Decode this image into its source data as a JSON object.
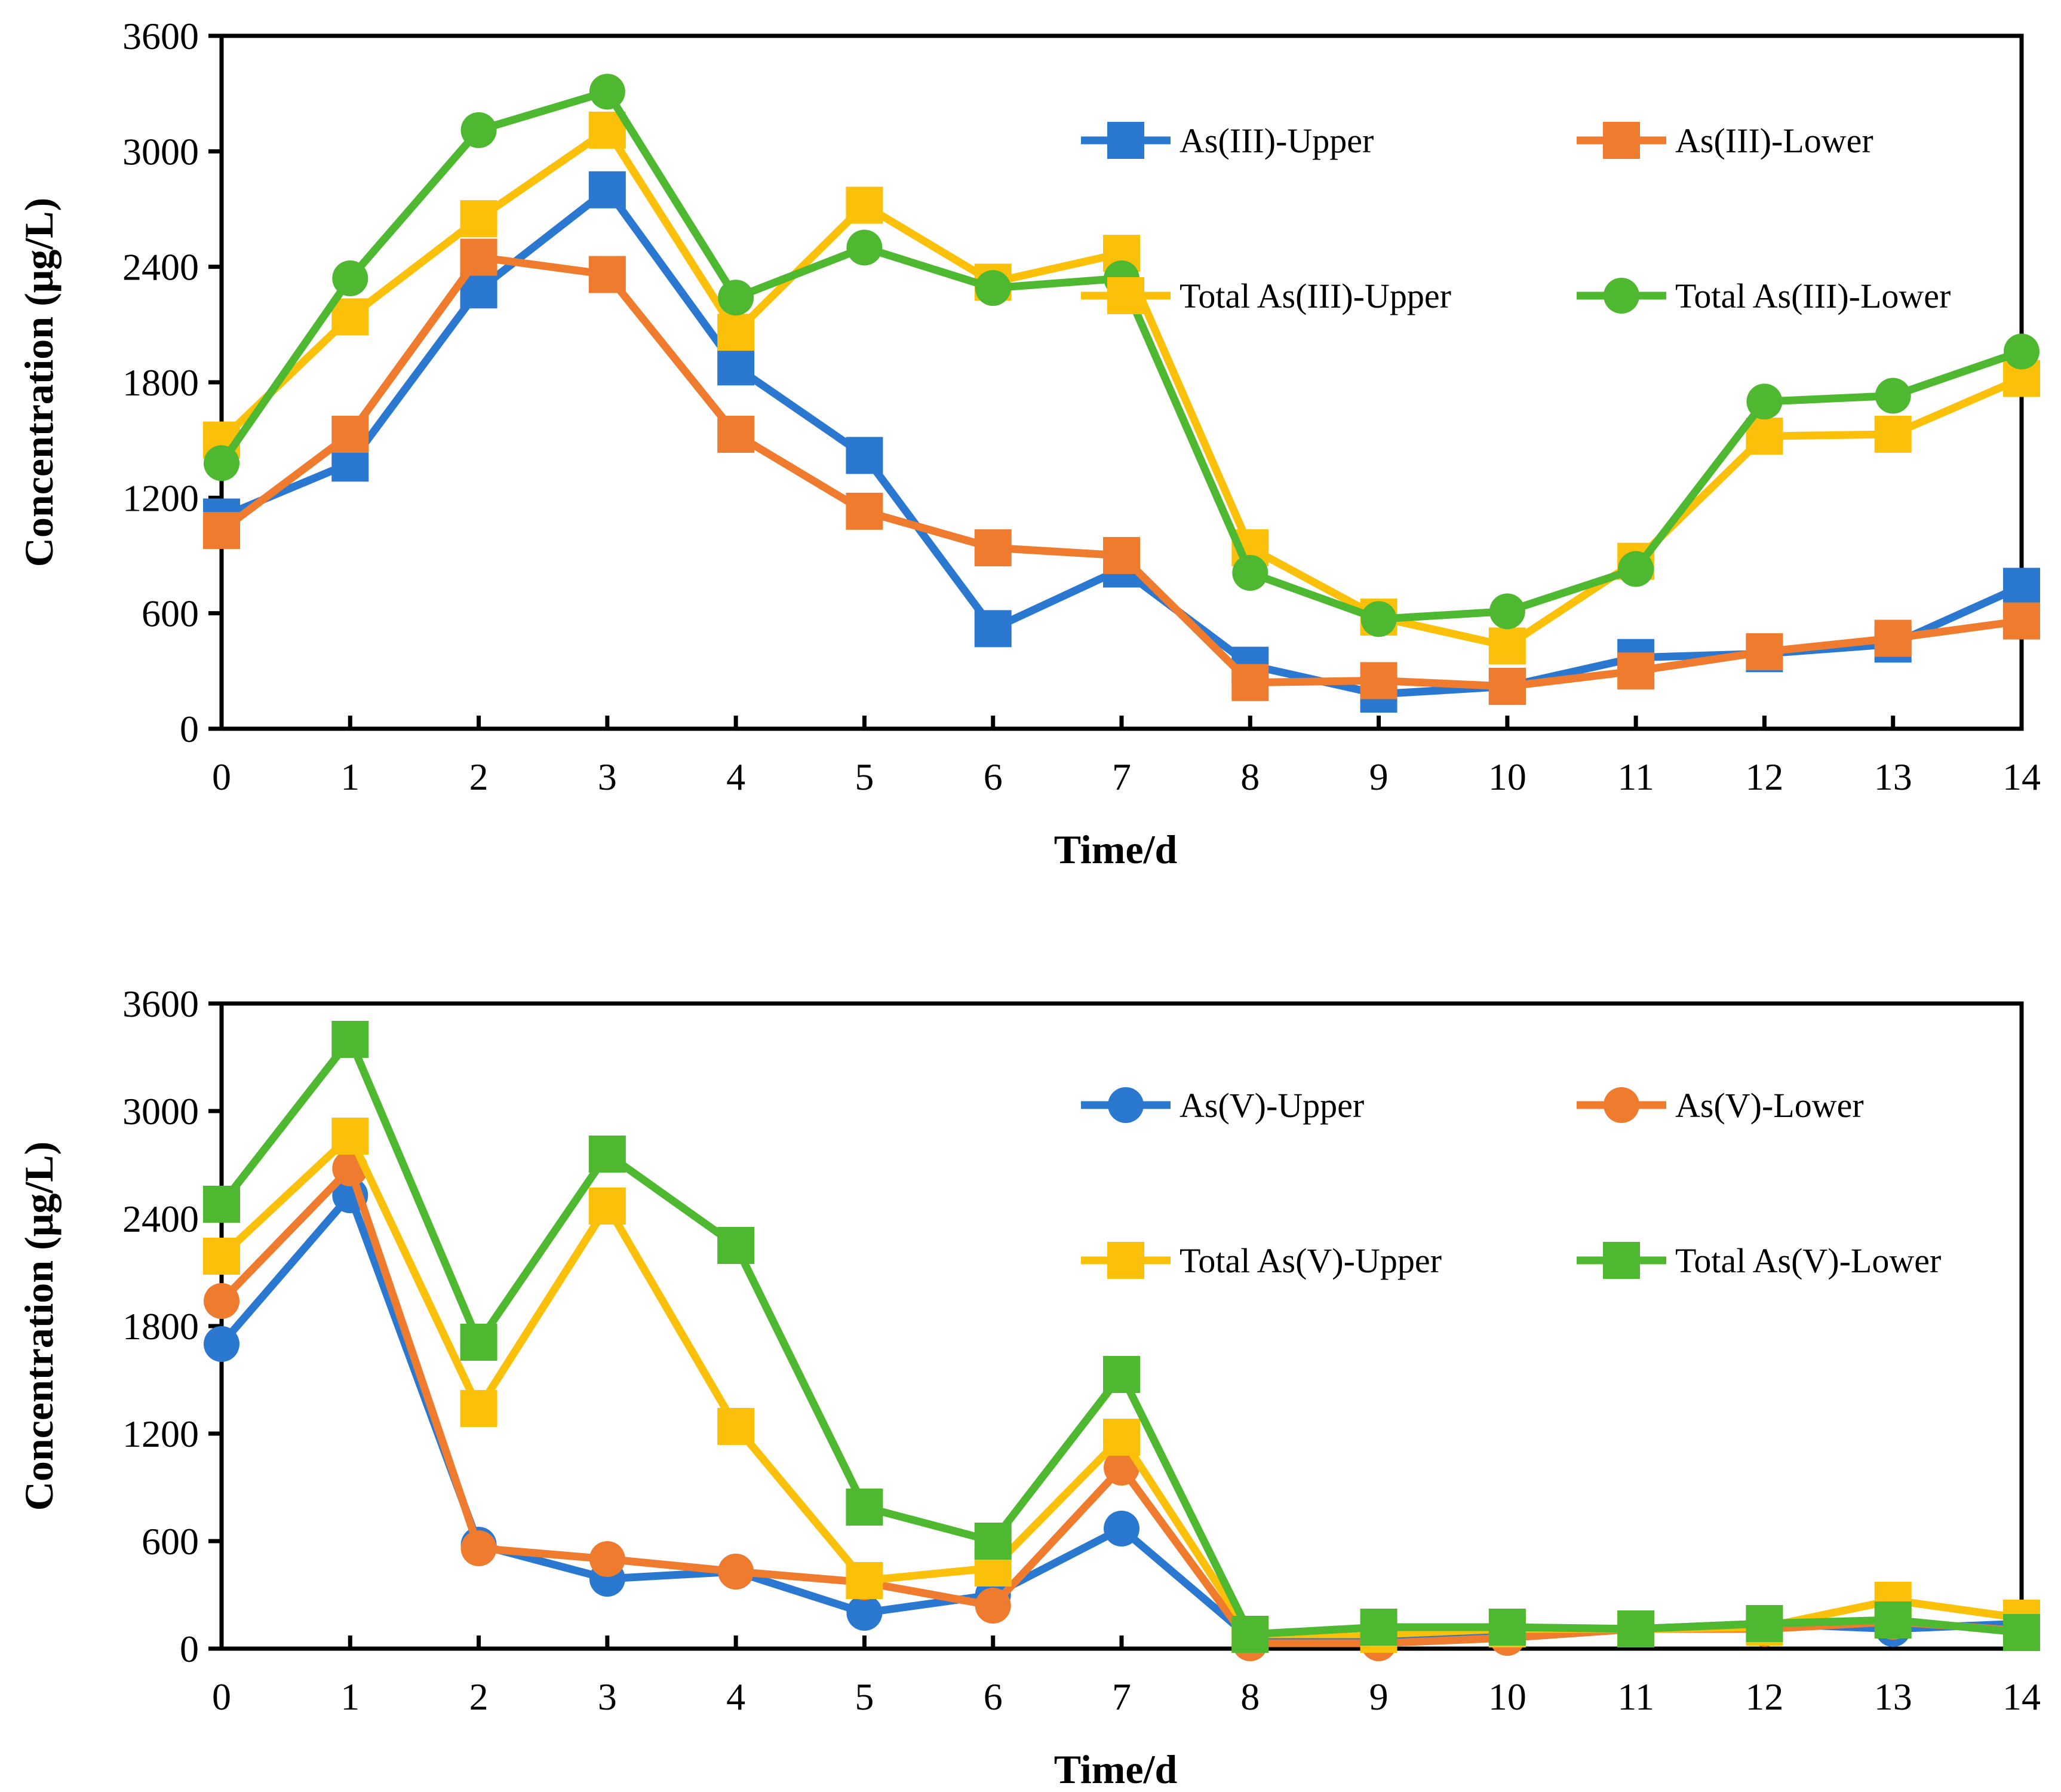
{
  "chart_data": [
    {
      "type": "line",
      "title": "",
      "xlabel": "Time/d",
      "ylabel": "Concentration (μg/L)",
      "x": [
        0,
        1,
        2,
        3,
        4,
        5,
        6,
        7,
        8,
        9,
        10,
        11,
        12,
        13,
        14
      ],
      "x_tick_labels": [
        "0",
        "1",
        "2",
        "3",
        "4",
        "5",
        "6",
        "7",
        "8",
        "9",
        "10",
        "11",
        "12",
        "13",
        "14"
      ],
      "xlim": [
        0,
        14
      ],
      "ylim": [
        0,
        3600
      ],
      "y_ticks": [
        0,
        600,
        1200,
        1800,
        2400,
        3000,
        3600
      ],
      "y_tick_labels": [
        "0",
        "600",
        "1200",
        "1800",
        "2400",
        "3000",
        "3600"
      ],
      "grid": false,
      "legend_position": "top-right",
      "series": [
        {
          "name": "As(III)-Upper",
          "color": "#2a78cf",
          "marker": "square",
          "values": [
            1100,
            1380,
            2280,
            2800,
            1880,
            1420,
            520,
            830,
            330,
            180,
            220,
            370,
            390,
            440,
            740
          ]
        },
        {
          "name": "As(III)-Lower",
          "color": "#ef7b2e",
          "marker": "square",
          "values": [
            1030,
            1530,
            2450,
            2360,
            1530,
            1130,
            940,
            900,
            240,
            250,
            220,
            300,
            400,
            470,
            560
          ]
        },
        {
          "name": "Total As(III)-Upper",
          "color": "#fbc00a",
          "marker": "square",
          "values": [
            1500,
            2140,
            2650,
            3110,
            2060,
            2720,
            2320,
            2470,
            940,
            580,
            430,
            870,
            1520,
            1530,
            1820
          ]
        },
        {
          "name": "Total As(III)-Lower",
          "color": "#4eb830",
          "marker": "circle",
          "values": [
            1380,
            2340,
            3110,
            3310,
            2240,
            2500,
            2290,
            2340,
            810,
            570,
            610,
            830,
            1700,
            1730,
            1960
          ]
        }
      ]
    },
    {
      "type": "line",
      "title": "",
      "xlabel": "Time/d",
      "ylabel": "Concentration (μg/L)",
      "x": [
        0,
        1,
        2,
        3,
        4,
        5,
        6,
        7,
        8,
        9,
        10,
        11,
        12,
        13,
        14
      ],
      "x_tick_labels": [
        "0",
        "1",
        "2",
        "3",
        "4",
        "5",
        "6",
        "7",
        "8",
        "9",
        "10",
        "11",
        "12",
        "13",
        "14"
      ],
      "xlim": [
        0,
        14
      ],
      "ylim": [
        0,
        3600
      ],
      "y_ticks": [
        0,
        600,
        1200,
        1800,
        2400,
        3000,
        3600
      ],
      "y_tick_labels": [
        "0",
        "600",
        "1200",
        "1800",
        "2400",
        "3000",
        "3600"
      ],
      "grid": false,
      "legend_position": "top-right",
      "series": [
        {
          "name": "As(V)-Upper",
          "color": "#2a78cf",
          "marker": "circle",
          "values": [
            1700,
            2530,
            580,
            390,
            430,
            200,
            300,
            670,
            60,
            50,
            80,
            110,
            140,
            110,
            140
          ]
        },
        {
          "name": "As(V)-Lower",
          "color": "#ef7b2e",
          "marker": "circle",
          "values": [
            1940,
            2680,
            560,
            500,
            430,
            370,
            240,
            1010,
            30,
            30,
            60,
            110,
            110,
            150,
            100
          ]
        },
        {
          "name": "Total As(V)-Upper",
          "color": "#fbc00a",
          "marker": "square",
          "values": [
            2190,
            2860,
            1340,
            2470,
            1240,
            380,
            450,
            1180,
            80,
            80,
            110,
            110,
            120,
            270,
            170
          ]
        },
        {
          "name": "Total As(V)-Lower",
          "color": "#4eb830",
          "marker": "square",
          "values": [
            2480,
            3400,
            1710,
            2760,
            2250,
            790,
            600,
            1530,
            80,
            120,
            120,
            110,
            140,
            160,
            90
          ]
        }
      ]
    }
  ]
}
